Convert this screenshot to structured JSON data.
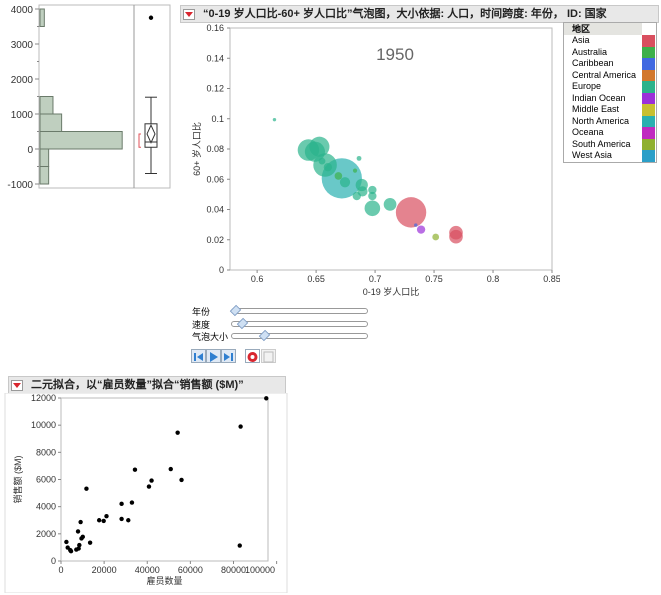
{
  "histogram": {
    "y_ticks": [
      "4000",
      "3000",
      "2000",
      "1000",
      "0",
      "-1000"
    ],
    "ylim": [
      -1000,
      4000
    ],
    "bins": [
      {
        "from": 3500,
        "to": 4000,
        "count": 1
      },
      {
        "from": 1000,
        "to": 1500,
        "count": 3
      },
      {
        "from": 500,
        "to": 1000,
        "count": 5
      },
      {
        "from": 0,
        "to": 500,
        "count": 19
      },
      {
        "from": -500,
        "to": 0,
        "count": 2
      },
      {
        "from": -1000,
        "to": -500,
        "count": 2
      }
    ],
    "boxplot": {
      "outlier": 3750,
      "whisker_low": -700,
      "q1": 50,
      "median": 200,
      "q3": 720,
      "whisker_high": 1480,
      "mean": 430,
      "mean_ci": [
        180,
        680
      ],
      "shortest_half": [
        50,
        430
      ]
    },
    "bar_color": "#bfcfbf"
  },
  "bubble": {
    "title": "“0-19 岁人口比-60+ 岁人口比”气泡图，大小依据: 人口，时间跨度: 年份， ID: 国家",
    "year_label": "1950",
    "xlabel": "0-19 岁人口比",
    "ylabel": "60+ 岁人口比",
    "x_ticks": [
      "0.6",
      "0.65",
      "0.7",
      "0.75",
      "0.8",
      "0.85"
    ],
    "y_ticks": [
      "0",
      "0.02",
      "0.04",
      "0.06",
      "0.08",
      "0.1",
      "0.12",
      "0.14",
      "0.16"
    ],
    "xlim": [
      0.577,
      0.85
    ],
    "ylim": [
      0,
      0.16
    ],
    "legend": {
      "title": "地区",
      "items": [
        {
          "label": "Asia",
          "color": "#d94f5f"
        },
        {
          "label": "Australia",
          "color": "#3db04a"
        },
        {
          "label": "Caribbean",
          "color": "#4169e1"
        },
        {
          "label": "Central America",
          "color": "#d2782d"
        },
        {
          "label": "Europe",
          "color": "#2bb38b"
        },
        {
          "label": "Indian Ocean",
          "color": "#9b30d9"
        },
        {
          "label": "Middle East",
          "color": "#c8c030"
        },
        {
          "label": "North America",
          "color": "#2ab0b0"
        },
        {
          "label": "Oceana",
          "color": "#c02ac0"
        },
        {
          "label": "South America",
          "color": "#8fb030"
        },
        {
          "label": "West Asia",
          "color": "#2b9fc8"
        }
      ]
    },
    "points": [
      {
        "x": 0.6147,
        "y": 0.0994,
        "size": 1,
        "region": "Europe"
      },
      {
        "x": 0.6435,
        "y": 0.0793,
        "size": 40,
        "region": "Europe"
      },
      {
        "x": 0.6528,
        "y": 0.0815,
        "size": 35,
        "region": "Europe"
      },
      {
        "x": 0.649,
        "y": 0.0782,
        "size": 35,
        "region": "Europe"
      },
      {
        "x": 0.6576,
        "y": 0.0694,
        "size": 48,
        "region": "Europe"
      },
      {
        "x": 0.655,
        "y": 0.072,
        "size": 4,
        "region": "Europe"
      },
      {
        "x": 0.66,
        "y": 0.068,
        "size": 6,
        "region": "Europe"
      },
      {
        "x": 0.6718,
        "y": 0.0606,
        "size": 140,
        "region": "North America"
      },
      {
        "x": 0.6689,
        "y": 0.0622,
        "size": 5,
        "region": "Australia"
      },
      {
        "x": 0.6864,
        "y": 0.0738,
        "size": 2,
        "region": "Europe"
      },
      {
        "x": 0.683,
        "y": 0.0657,
        "size": 1.5,
        "region": "Australia"
      },
      {
        "x": 0.6745,
        "y": 0.058,
        "size": 9,
        "region": "Europe"
      },
      {
        "x": 0.6887,
        "y": 0.0562,
        "size": 13,
        "region": "Europe"
      },
      {
        "x": 0.6845,
        "y": 0.0489,
        "size": 6,
        "region": "Europe"
      },
      {
        "x": 0.6893,
        "y": 0.052,
        "size": 9,
        "region": "Europe"
      },
      {
        "x": 0.6977,
        "y": 0.0529,
        "size": 6,
        "region": "Europe"
      },
      {
        "x": 0.6977,
        "y": 0.0489,
        "size": 6,
        "region": "Europe"
      },
      {
        "x": 0.6977,
        "y": 0.0408,
        "size": 21,
        "region": "Europe"
      },
      {
        "x": 0.7127,
        "y": 0.0434,
        "size": 14,
        "region": "Europe"
      },
      {
        "x": 0.7305,
        "y": 0.0381,
        "size": 80,
        "region": "Asia"
      },
      {
        "x": 0.7345,
        "y": 0.0297,
        "size": 0.5,
        "region": "Caribbean"
      },
      {
        "x": 0.739,
        "y": 0.0267,
        "size": 6,
        "region": "Indian Ocean"
      },
      {
        "x": 0.7514,
        "y": 0.0218,
        "size": 4,
        "region": "South America"
      },
      {
        "x": 0.7686,
        "y": 0.022,
        "size": 16,
        "region": "Asia"
      },
      {
        "x": 0.7686,
        "y": 0.0247,
        "size": 16,
        "region": "Asia"
      }
    ],
    "sliders": [
      {
        "label": "年份",
        "value": 0.0
      },
      {
        "label": "速度",
        "value": 0.05
      },
      {
        "label": "气泡大小",
        "value": 0.22
      }
    ],
    "buttons": [
      "step-back",
      "play",
      "step-forward",
      "record",
      "save"
    ]
  },
  "scatter": {
    "title": "二元拟合，以“雇员数量”拟合“销售额 ($M)”",
    "xlabel": "雇员数量",
    "ylabel": "销售额 ($M)",
    "x_ticks": [
      "0",
      "20000",
      "40000",
      "60000",
      "80000",
      "100000"
    ],
    "y_ticks": [
      "0",
      "2000",
      "4000",
      "6000",
      "8000",
      "10000",
      "12000"
    ],
    "xlim": [
      0,
      96000
    ],
    "ylim": [
      0,
      12000
    ],
    "points": [
      [
        2500,
        1400
      ],
      [
        3100,
        990
      ],
      [
        4650,
        720
      ],
      [
        4300,
        800
      ],
      [
        7100,
        840
      ],
      [
        7900,
        2180
      ],
      [
        8500,
        1170
      ],
      [
        8200,
        920
      ],
      [
        9100,
        2870
      ],
      [
        9500,
        1660
      ],
      [
        10100,
        1780
      ],
      [
        11800,
        5320
      ],
      [
        13500,
        1350
      ],
      [
        17700,
        3000
      ],
      [
        19800,
        2950
      ],
      [
        21100,
        3300
      ],
      [
        28100,
        4210
      ],
      [
        28100,
        3100
      ],
      [
        31200,
        3000
      ],
      [
        32900,
        4300
      ],
      [
        34300,
        6720
      ],
      [
        40800,
        5480
      ],
      [
        42000,
        5920
      ],
      [
        50900,
        6770
      ],
      [
        54100,
        9450
      ],
      [
        55900,
        5970
      ],
      [
        82900,
        1140
      ],
      [
        83300,
        9900
      ],
      [
        95200,
        11980
      ]
    ]
  }
}
